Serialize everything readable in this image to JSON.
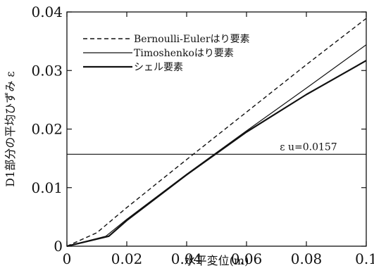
{
  "chart_data": {
    "type": "line",
    "xlabel": "水平変位(m)",
    "ylabel": "D1部分の平均ひずみ ε",
    "xlim": [
      0,
      0.1
    ],
    "ylim": [
      0,
      0.04
    ],
    "x_ticks": [
      "0",
      "0.02",
      "0.04",
      "0.06",
      "0.08",
      "0.1"
    ],
    "y_ticks": [
      "0",
      "0.01",
      "0.02",
      "0.03",
      "0.04"
    ],
    "grid": false,
    "legend_position": "top-left",
    "series": [
      {
        "name": "Bernoulli-Eulerはり要素",
        "style": "dashed",
        "color": "#111111",
        "x": [
          0,
          0.01,
          0.02,
          0.04,
          0.06,
          0.08,
          0.1
        ],
        "y": [
          0,
          0.0023,
          0.0066,
          0.0148,
          0.0229,
          0.031,
          0.0389
        ]
      },
      {
        "name": "Timoshenkoはり要素",
        "style": "thin",
        "color": "#111111",
        "x": [
          0,
          0.013,
          0.02,
          0.04,
          0.06,
          0.08,
          0.1
        ],
        "y": [
          0,
          0.0017,
          0.0046,
          0.0123,
          0.0197,
          0.027,
          0.0344
        ]
      },
      {
        "name": "シェル要素",
        "style": "thick",
        "color": "#111111",
        "x": [
          0,
          0.014,
          0.02,
          0.04,
          0.06,
          0.08,
          0.1
        ],
        "y": [
          0,
          0.0017,
          0.0044,
          0.0122,
          0.0195,
          0.0259,
          0.0317
        ]
      }
    ],
    "reference_lines": [
      {
        "axis": "y",
        "value": 0.0157,
        "label": "ε u=0.0157"
      }
    ]
  }
}
